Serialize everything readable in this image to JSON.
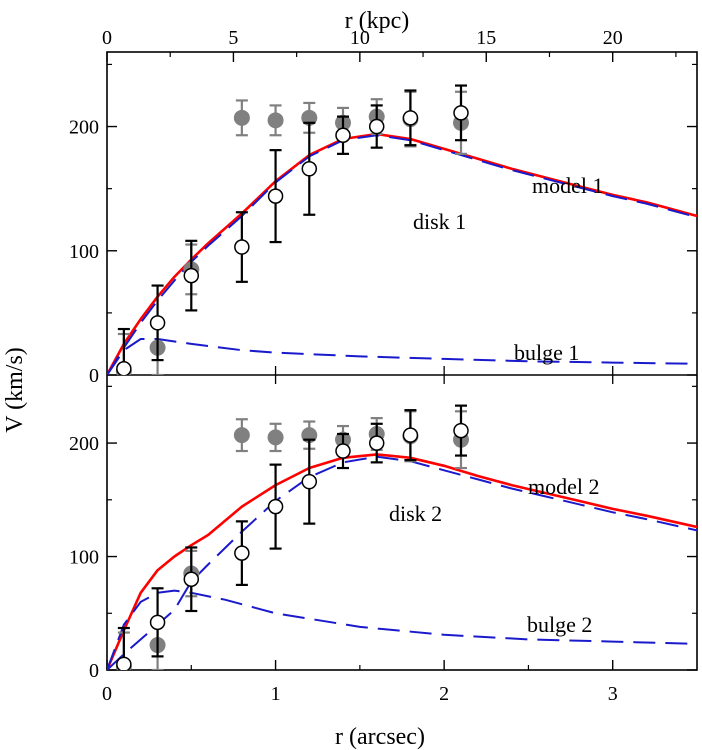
{
  "chart_data": {
    "type": "scatter",
    "figure": {
      "xlabel_bottom": "r (arcsec)",
      "xlabel_top": "r (kpc)",
      "ylabel": "V (km/s)",
      "x_range": [
        0,
        3.5
      ],
      "x_ticks": [
        0,
        1,
        2,
        3
      ],
      "x_ticks_top_kpc": [
        0,
        5,
        10,
        15,
        20
      ],
      "kpc_per_arcsec": 6.667
    },
    "panels": [
      {
        "id": "top",
        "ylim": [
          0,
          260
        ],
        "y_ticks": [
          0,
          100,
          200
        ],
        "labels": [
          "model 1",
          "disk 1",
          "bulge 1"
        ],
        "series": [
          {
            "name": "gray filled circles",
            "marker": "filled-circle",
            "color": "#808080",
            "x": [
              0.1,
              0.3,
              0.5,
              0.8,
              1.0,
              1.2,
              1.4,
              1.6,
              1.8,
              2.1
            ],
            "y": [
              3,
              22,
              85,
              207,
              205,
              207,
              203,
              208,
              206,
              203
            ],
            "err": [
              30,
              22,
              20,
              14,
              12,
              12,
              12,
              14,
              22,
              25
            ]
          },
          {
            "name": "open circles",
            "marker": "open-circle",
            "color": "#000000",
            "x": [
              0.1,
              0.3,
              0.5,
              0.8,
              1.0,
              1.2,
              1.4,
              1.6,
              1.8,
              2.1
            ],
            "y": [
              5,
              42,
              80,
              103,
              144,
              166,
              193,
              200,
              207,
              211
            ],
            "err": [
              32,
              30,
              28,
              28,
              37,
              37,
              15,
              17,
              22,
              22
            ]
          },
          {
            "name": "model 1",
            "style": "solid",
            "color": "#ff0000",
            "x": [
              0,
              0.1,
              0.2,
              0.3,
              0.4,
              0.5,
              0.6,
              0.8,
              1.0,
              1.2,
              1.4,
              1.6,
              1.8,
              2.0,
              2.2,
              2.4,
              2.6,
              2.8,
              3.0,
              3.2,
              3.5
            ],
            "y": [
              0,
              25,
              45,
              63,
              79,
              93,
              106,
              130,
              156,
              177,
              190,
              194,
              190,
              182,
              174,
              166,
              159,
              152,
              145,
              139,
              128
            ]
          },
          {
            "name": "disk 1",
            "style": "dashed",
            "color": "#1a1acc",
            "x": [
              0,
              0.1,
              0.2,
              0.3,
              0.4,
              0.5,
              0.6,
              0.8,
              1.0,
              1.2,
              1.4,
              1.6,
              1.8,
              2.0,
              2.2,
              2.4,
              2.6,
              2.8,
              3.0,
              3.2,
              3.5
            ],
            "y": [
              0,
              22,
              42,
              60,
              76,
              91,
              104,
              128,
              155,
              176,
              189,
              193,
              189,
              181,
              173,
              165,
              158,
              151,
              144,
              138,
              127
            ]
          },
          {
            "name": "bulge 1",
            "style": "dashed",
            "color": "#1a1acc",
            "x": [
              0,
              0.1,
              0.2,
              0.3,
              0.5,
              0.8,
              1.0,
              1.5,
              2.0,
              2.5,
              3.0,
              3.5
            ],
            "y": [
              0,
              20,
              29,
              29,
              25,
              20,
              18,
              15,
              13,
              11,
              10,
              9
            ]
          }
        ]
      },
      {
        "id": "bottom",
        "ylim": [
          0,
          260
        ],
        "y_ticks": [
          0,
          100,
          200
        ],
        "labels": [
          "model 2",
          "disk 2",
          "bulge 2"
        ],
        "series": [
          {
            "name": "gray filled circles",
            "marker": "filled-circle",
            "color": "#808080",
            "x": [
              0.1,
              0.3,
              0.5,
              0.8,
              1.0,
              1.2,
              1.4,
              1.6,
              1.8,
              2.1
            ],
            "y": [
              3,
              22,
              85,
              207,
              205,
              207,
              203,
              208,
              206,
              203
            ],
            "err": [
              30,
              22,
              20,
              14,
              12,
              12,
              12,
              14,
              22,
              25
            ]
          },
          {
            "name": "open circles",
            "marker": "open-circle",
            "color": "#000000",
            "x": [
              0.1,
              0.3,
              0.5,
              0.8,
              1.0,
              1.2,
              1.4,
              1.6,
              1.8,
              2.1
            ],
            "y": [
              5,
              42,
              80,
              103,
              144,
              166,
              193,
              200,
              207,
              211
            ],
            "err": [
              32,
              30,
              28,
              28,
              37,
              37,
              15,
              17,
              22,
              22
            ]
          },
          {
            "name": "model 2",
            "style": "solid",
            "color": "#ff0000",
            "x": [
              0,
              0.1,
              0.2,
              0.3,
              0.4,
              0.5,
              0.6,
              0.8,
              1.0,
              1.2,
              1.4,
              1.6,
              1.8,
              2.0,
              2.2,
              2.4,
              2.6,
              2.8,
              3.0,
              3.2,
              3.5
            ],
            "y": [
              0,
              35,
              68,
              88,
              100,
              110,
              119,
              144,
              163,
              178,
              187,
              190,
              187,
              180,
              171,
              163,
              156,
              149,
              142,
              136,
              126
            ]
          },
          {
            "name": "disk 2",
            "style": "dashed",
            "color": "#1a1acc",
            "x": [
              0,
              0.1,
              0.2,
              0.3,
              0.4,
              0.5,
              0.6,
              0.8,
              1.0,
              1.2,
              1.4,
              1.6,
              1.8,
              2.0,
              2.2,
              2.4,
              2.6,
              2.8,
              3.0,
              3.2,
              3.5
            ],
            "y": [
              0,
              14,
              27,
              40,
              53,
              78,
              93,
              122,
              149,
              170,
              183,
              188,
              184,
              176,
              168,
              160,
              153,
              146,
              139,
              133,
              123
            ]
          },
          {
            "name": "bulge 2",
            "style": "dashed",
            "color": "#1a1acc",
            "x": [
              0,
              0.1,
              0.2,
              0.3,
              0.4,
              0.5,
              0.7,
              1.0,
              1.5,
              2.0,
              2.5,
              3.0,
              3.5
            ],
            "y": [
              0,
              40,
              60,
              68,
              70,
              68,
              62,
              50,
              38,
              31,
              27,
              25,
              23
            ]
          }
        ]
      }
    ]
  }
}
